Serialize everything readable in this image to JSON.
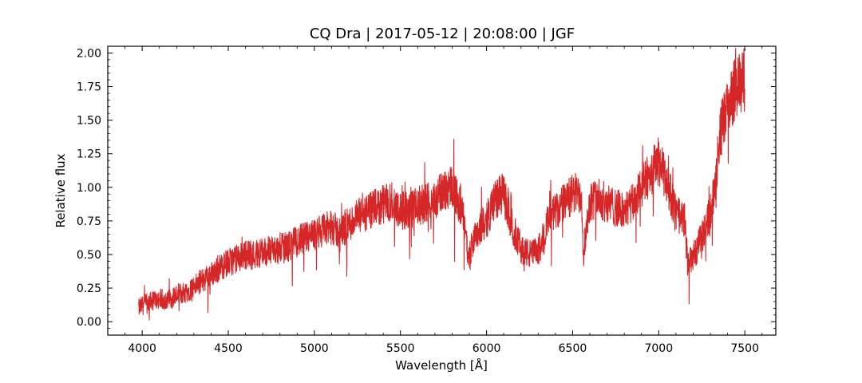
{
  "chart_data": {
    "type": "line",
    "title": "CQ Dra | 2017-05-12 | 20:08:00 | JGF",
    "xlabel": "Wavelength [Å]",
    "ylabel": "Relative flux",
    "xlim": [
      3800,
      7680
    ],
    "ylim": [
      -0.1,
      2.05
    ],
    "xticks": [
      4000,
      4500,
      5000,
      5500,
      6000,
      6500,
      7000,
      7500
    ],
    "xtick_labels": [
      "4000",
      "4500",
      "5000",
      "5500",
      "6000",
      "6500",
      "7000",
      "7500"
    ],
    "yticks": [
      0.0,
      0.25,
      0.5,
      0.75,
      1.0,
      1.25,
      1.5,
      1.75,
      2.0
    ],
    "ytick_labels": [
      "0.00",
      "0.25",
      "0.50",
      "0.75",
      "1.00",
      "1.25",
      "1.50",
      "1.75",
      "2.00"
    ],
    "grid": false,
    "series": [
      {
        "color": "#d62728",
        "x": [
          3980,
          4000,
          4050,
          4100,
          4150,
          4200,
          4250,
          4300,
          4350,
          4400,
          4450,
          4500,
          4550,
          4600,
          4650,
          4700,
          4750,
          4800,
          4850,
          4900,
          4950,
          5000,
          5050,
          5100,
          5150,
          5200,
          5250,
          5300,
          5350,
          5400,
          5450,
          5500,
          5550,
          5600,
          5650,
          5700,
          5750,
          5800,
          5850,
          5880,
          5893,
          5920,
          5950,
          6000,
          6050,
          6100,
          6150,
          6200,
          6250,
          6300,
          6350,
          6400,
          6450,
          6500,
          6550,
          6563,
          6600,
          6650,
          6700,
          6750,
          6800,
          6850,
          6900,
          6950,
          7000,
          7050,
          7080,
          7100,
          7150,
          7170,
          7200,
          7250,
          7300,
          7330,
          7350,
          7400,
          7450,
          7500
        ],
        "y": [
          0.1,
          0.12,
          0.15,
          0.17,
          0.16,
          0.2,
          0.22,
          0.26,
          0.31,
          0.35,
          0.4,
          0.44,
          0.47,
          0.5,
          0.5,
          0.52,
          0.53,
          0.54,
          0.56,
          0.6,
          0.62,
          0.64,
          0.68,
          0.7,
          0.66,
          0.72,
          0.78,
          0.8,
          0.84,
          0.87,
          0.9,
          0.83,
          0.82,
          0.86,
          0.88,
          0.9,
          0.98,
          1.02,
          0.85,
          0.68,
          0.45,
          0.6,
          0.68,
          0.75,
          0.92,
          0.95,
          0.7,
          0.55,
          0.5,
          0.52,
          0.72,
          0.82,
          0.88,
          0.95,
          0.96,
          0.52,
          0.9,
          0.92,
          0.88,
          0.85,
          0.82,
          0.88,
          1.0,
          1.1,
          1.2,
          1.02,
          0.9,
          0.8,
          0.75,
          0.42,
          0.48,
          0.62,
          0.82,
          1.05,
          1.35,
          1.6,
          1.75,
          1.8
        ]
      }
    ]
  }
}
